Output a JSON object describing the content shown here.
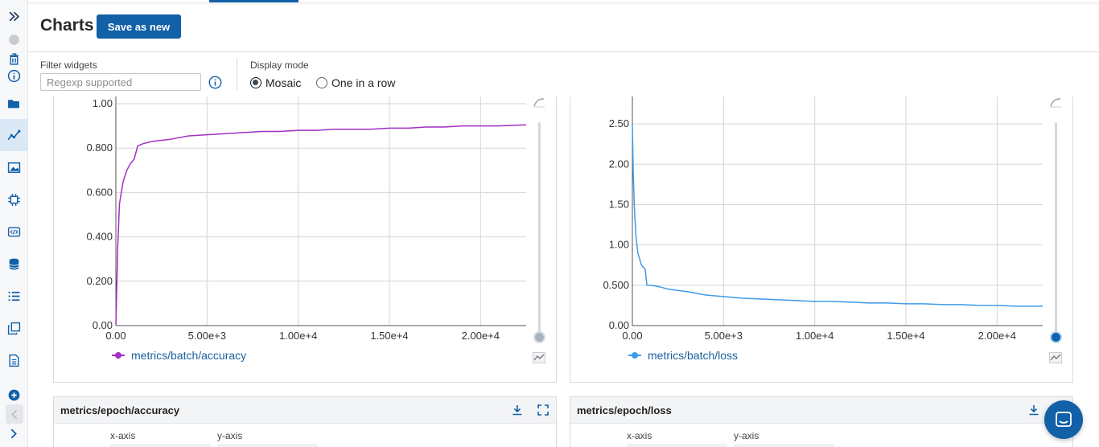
{
  "header": {
    "title": "Charts",
    "save_label": "Save as new"
  },
  "filter": {
    "label": "Filter widgets",
    "placeholder": "Regexp supported"
  },
  "display_mode": {
    "label": "Display mode",
    "options": [
      "Mosaic",
      "One in a row"
    ],
    "selected": "Mosaic"
  },
  "sidebar": {
    "items": [
      "expand-icon",
      "status-dot-icon",
      "trash-icon",
      "info-icon",
      "folder-icon",
      "charts-icon",
      "image-icon",
      "chip-icon",
      "code-icon",
      "database-icon",
      "list-icon",
      "copy-icon",
      "document-icon",
      "add-icon",
      "collapse-icon",
      "chevron-right-icon"
    ],
    "active": "charts-icon"
  },
  "panels": {
    "accuracy": {
      "legend": "metrics/batch/accuracy",
      "color": "#a12fc4",
      "y_ticks": [
        "1.00",
        "0.800",
        "0.600",
        "0.400",
        "0.200",
        "0.00"
      ],
      "x_ticks": [
        "0.00",
        "5.00e+3",
        "1.00e+4",
        "1.50e+4",
        "2.00e+4"
      ]
    },
    "loss": {
      "legend": "metrics/batch/loss",
      "color": "#3d9be9",
      "y_ticks": [
        "2.50",
        "2.00",
        "1.50",
        "1.00",
        "0.500",
        "0.00"
      ],
      "x_ticks": [
        "0.00",
        "5.00e+3",
        "1.00e+4",
        "1.50e+4",
        "2.00e+4"
      ]
    }
  },
  "lower": {
    "left_title": "metrics/epoch/accuracy",
    "right_title": "metrics/epoch/loss",
    "x_axis": "x-axis",
    "y_axis": "y-axis"
  },
  "chart_data": [
    {
      "type": "line",
      "series": [
        {
          "name": "metrics/batch/accuracy",
          "x": [
            0,
            100,
            200,
            400,
            600,
            800,
            1000,
            1200,
            1500,
            2000,
            3000,
            4000,
            5000,
            6000,
            7000,
            8000,
            9000,
            10000,
            11000,
            12000,
            13000,
            14000,
            15000,
            16000,
            17000,
            18000,
            19000,
            20000,
            21000,
            22500
          ],
          "y": [
            0.0,
            0.35,
            0.55,
            0.65,
            0.7,
            0.73,
            0.75,
            0.81,
            0.82,
            0.83,
            0.84,
            0.855,
            0.86,
            0.865,
            0.87,
            0.875,
            0.875,
            0.88,
            0.88,
            0.885,
            0.885,
            0.885,
            0.89,
            0.89,
            0.895,
            0.895,
            0.9,
            0.9,
            0.9,
            0.905
          ]
        }
      ],
      "xlim": [
        0,
        22500
      ],
      "ylim": [
        0,
        1.0
      ],
      "x_ticks": [
        0,
        5000,
        10000,
        15000,
        20000
      ],
      "y_ticks": [
        0,
        0.2,
        0.4,
        0.6,
        0.8,
        1.0
      ],
      "grid": true
    },
    {
      "type": "line",
      "series": [
        {
          "name": "metrics/batch/loss",
          "x": [
            0,
            50,
            100,
            200,
            300,
            500,
            700,
            800,
            1000,
            1500,
            2000,
            3000,
            4000,
            5000,
            6000,
            7000,
            8000,
            9000,
            10000,
            11000,
            12000,
            13000,
            14000,
            15000,
            16000,
            17000,
            18000,
            19000,
            20000,
            21000,
            22500
          ],
          "y": [
            2.5,
            1.9,
            1.5,
            1.1,
            0.9,
            0.75,
            0.7,
            0.5,
            0.5,
            0.48,
            0.45,
            0.42,
            0.38,
            0.36,
            0.34,
            0.33,
            0.32,
            0.31,
            0.3,
            0.3,
            0.29,
            0.28,
            0.28,
            0.27,
            0.27,
            0.26,
            0.26,
            0.25,
            0.25,
            0.24,
            0.24
          ]
        }
      ],
      "xlim": [
        0,
        22500
      ],
      "ylim": [
        0,
        2.75
      ],
      "x_ticks": [
        0,
        5000,
        10000,
        15000,
        20000
      ],
      "y_ticks": [
        0,
        0.5,
        1.0,
        1.5,
        2.0,
        2.5
      ],
      "grid": true
    }
  ]
}
